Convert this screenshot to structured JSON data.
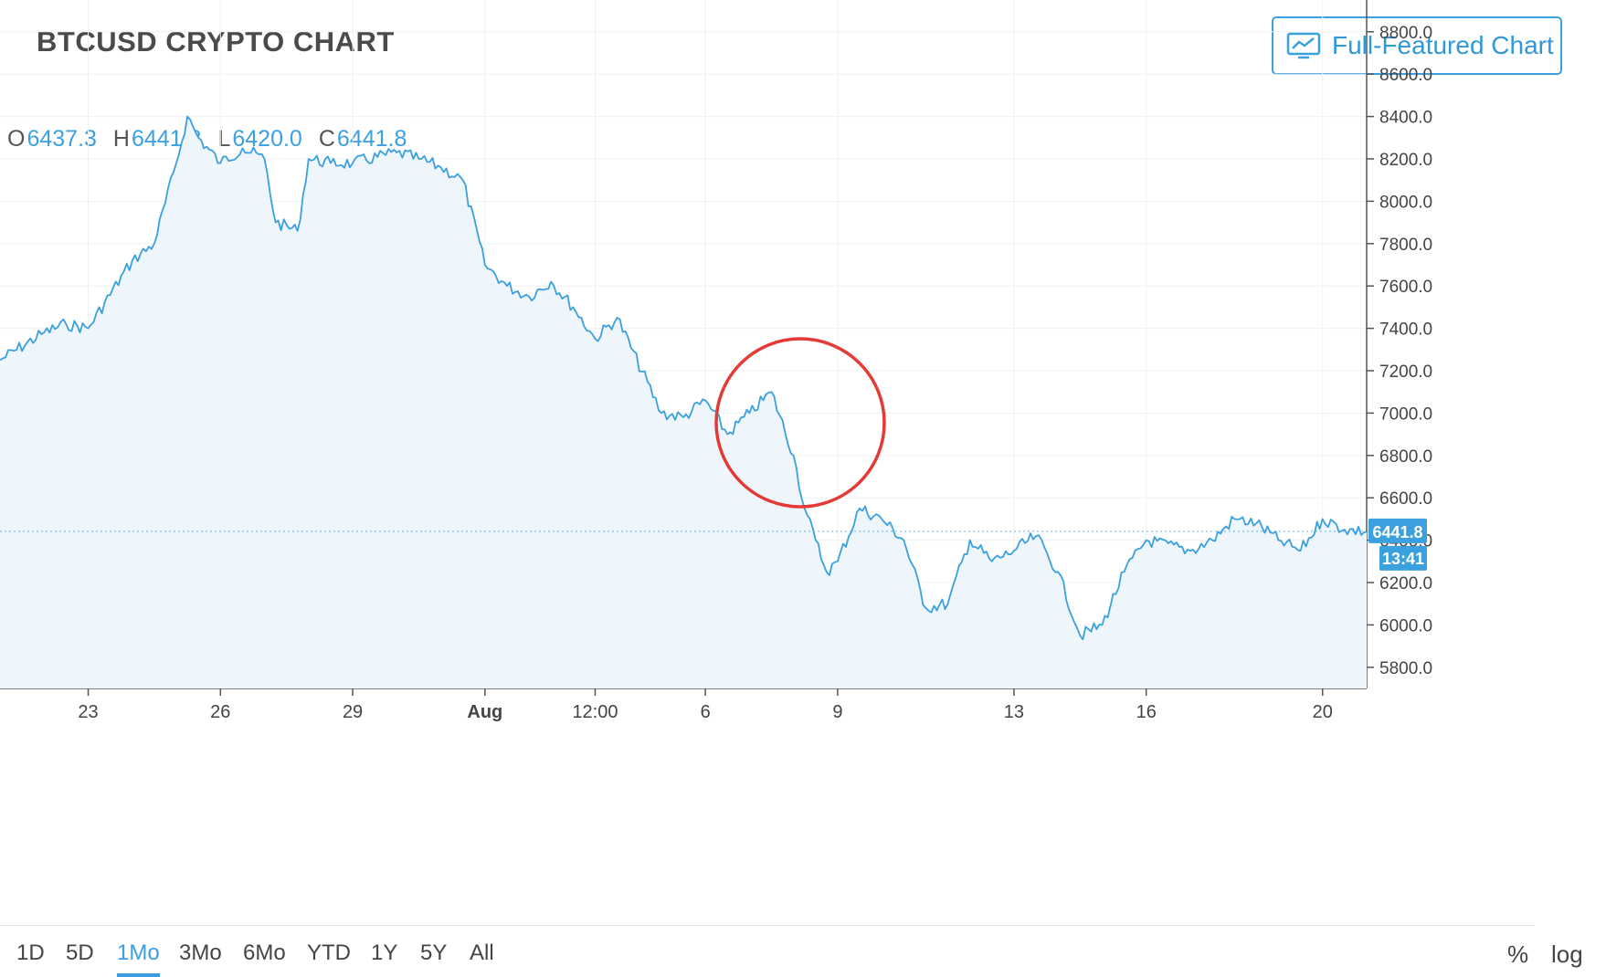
{
  "header": {
    "title": "BTCUSD CRYPTO CHART",
    "full_chart_button": "Full-Featured Chart",
    "full_chart_icon": "line-chart-monitor-icon"
  },
  "ohlc": {
    "o_label": "O",
    "o_value": "6437.3",
    "h_label": "H",
    "h_value": "6441.8",
    "l_label": "L",
    "l_value": "6420.0",
    "c_label": "C",
    "c_value": "6441.8"
  },
  "colors": {
    "line": "#3aa0de",
    "fill": "#eef6fc",
    "accent": "#3aa0de",
    "grid": "#eef1f4",
    "annotation": "#e53935"
  },
  "timeframes": [
    "1D",
    "5D",
    "1Mo",
    "3Mo",
    "6Mo",
    "YTD",
    "1Y",
    "5Y",
    "All"
  ],
  "timeframe_active": "1Mo",
  "toggles": {
    "percent": "%",
    "log": "log"
  },
  "chart_data": {
    "type": "area",
    "title": "BTCUSD CRYPTO CHART",
    "xlabel": "",
    "ylabel": "",
    "ylim": [
      5700,
      8950
    ],
    "y_ticks": [
      "5800.0",
      "6000.0",
      "6200.0",
      "6400.0",
      "6600.0",
      "6800.0",
      "7000.0",
      "7200.0",
      "7400.0",
      "7600.0",
      "7800.0",
      "8000.0",
      "8200.0",
      "8400.0",
      "8600.0",
      "8800.0"
    ],
    "x_ticks": [
      "23",
      "26",
      "29",
      "Aug",
      "12:00",
      "6",
      "9",
      "13",
      "16",
      "20"
    ],
    "x_domain": [
      "Jul 21",
      "Aug 21"
    ],
    "last_price_label": "6441.8",
    "countdown_label": "13:41",
    "grid": true,
    "annotation": "red circle around sharp drop near Aug 8",
    "series": [
      {
        "x": [
          "Jul 21",
          "Jul 22",
          "Jul 22 12:00",
          "Jul 23",
          "Jul 24",
          "Jul 24 12:00",
          "Jul 25",
          "Jul 25 06:00",
          "Jul 25 12:00",
          "Jul 26",
          "Jul 26 12:00",
          "Jul 27",
          "Jul 27 06:00",
          "Jul 27 18:00",
          "Jul 28",
          "Jul 28 12:00",
          "Jul 29",
          "Jul 30",
          "Jul 30 12:00",
          "Jul 31",
          "Jul 31 12:00",
          "Aug 1",
          "Aug 1 12:00",
          "Aug 2",
          "Aug 2 12:00",
          "Aug 3",
          "Aug 3 12:00",
          "Aug 4",
          "Aug 5",
          "Aug 5 12:00",
          "Aug 6",
          "Aug 6 12:00",
          "Aug 7",
          "Aug 7 12:00",
          "Aug 8",
          "Aug 8 06:00",
          "Aug 8 12:00",
          "Aug 8 18:00",
          "Aug 9",
          "Aug 9 12:00",
          "Aug 10",
          "Aug 10 12:00",
          "Aug 11",
          "Aug 11 12:00",
          "Aug 12",
          "Aug 12 12:00",
          "Aug 13",
          "Aug 13 12:00",
          "Aug 14",
          "Aug 14 12:00",
          "Aug 15",
          "Aug 15 12:00",
          "Aug 16",
          "Aug 17",
          "Aug 17 12:00",
          "Aug 18",
          "Aug 18 12:00",
          "Aug 19",
          "Aug 19 12:00",
          "Aug 20",
          "Aug 20 12:00",
          "Aug 21"
        ],
        "values": [
          7250,
          7380,
          7420,
          7400,
          7720,
          7800,
          8180,
          8400,
          8300,
          8180,
          8250,
          8200,
          7900,
          7860,
          8200,
          8180,
          8180,
          8230,
          8200,
          8160,
          8100,
          7700,
          7600,
          7550,
          7620,
          7500,
          7350,
          7450,
          7000,
          6980,
          7060,
          6900,
          7000,
          7100,
          6800,
          6550,
          6400,
          6250,
          6300,
          6550,
          6500,
          6400,
          6080,
          6100,
          6400,
          6300,
          6350,
          6420,
          6250,
          5950,
          6000,
          6250,
          6400,
          6350,
          6400,
          6500,
          6480,
          6400,
          6350,
          6500,
          6450,
          6440
        ]
      }
    ]
  }
}
